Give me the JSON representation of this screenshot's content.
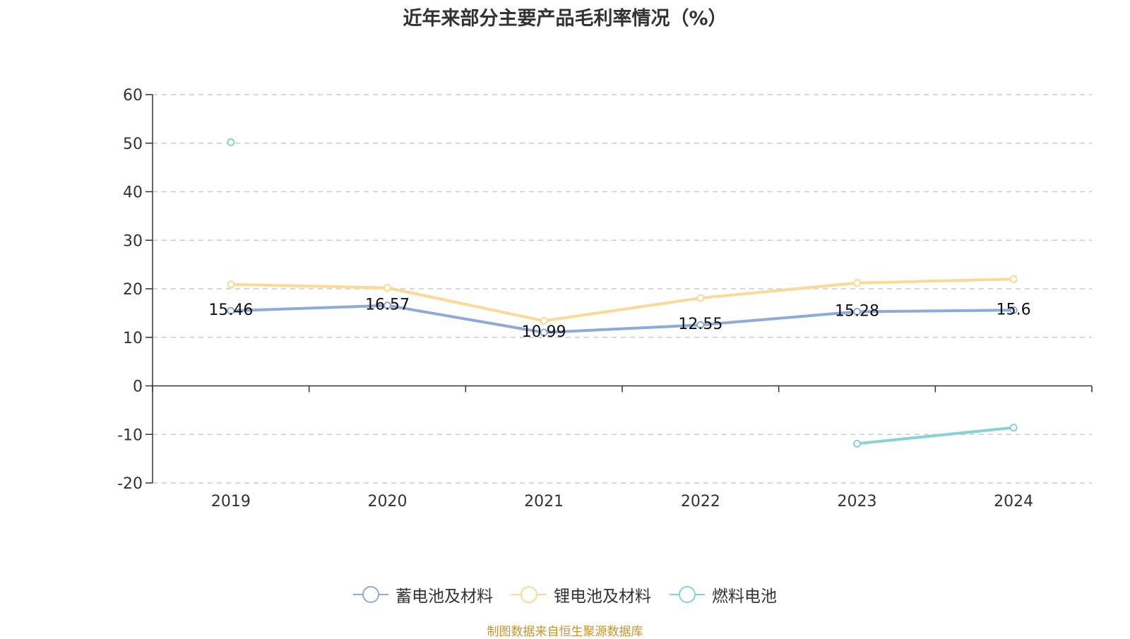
{
  "chart_data": {
    "type": "line",
    "title": "近年来部分主要产品毛利率情况（%）",
    "categories": [
      "2019",
      "2020",
      "2021",
      "2022",
      "2023",
      "2024"
    ],
    "ylim": [
      -20,
      60
    ],
    "yticks": [
      "60",
      "50",
      "40",
      "30",
      "20",
      "10",
      "0",
      "-10",
      "-20"
    ],
    "grid": true,
    "legend_position": "bottom",
    "series": [
      {
        "name": "蓄电池及材料",
        "color": "#8eaad9",
        "values": [
          15.46,
          16.57,
          10.99,
          12.55,
          15.28,
          15.6
        ],
        "labels": [
          "15.46",
          "16.57",
          "10.99",
          "12.55",
          "15.28",
          "15.6"
        ]
      },
      {
        "name": "锂电池及材料",
        "color": "#fcd994",
        "values": [
          20.9,
          20.2,
          13.4,
          18.1,
          21.2,
          22.0
        ],
        "labels": []
      },
      {
        "name": "燃料电池",
        "color": "#86d2d4",
        "values": [
          50.2,
          null,
          null,
          null,
          -11.9,
          -8.6
        ],
        "labels": []
      }
    ],
    "source_note": "制图数据来自恒生聚源数据库"
  }
}
